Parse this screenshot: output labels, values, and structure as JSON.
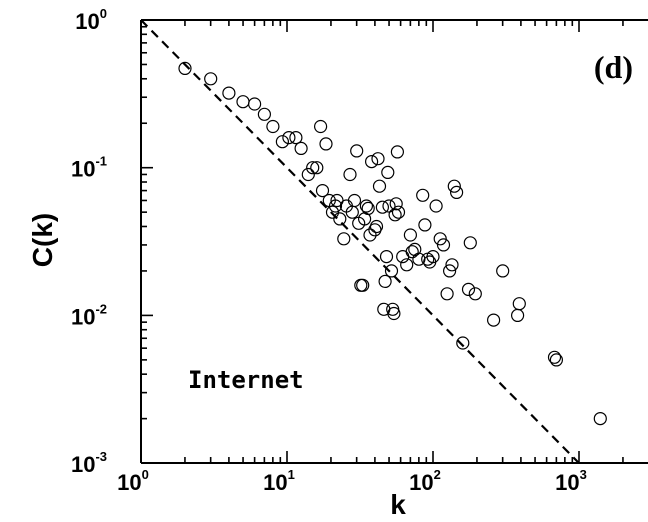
{
  "chart_data": {
    "type": "scatter",
    "xlabel": "k",
    "ylabel": "C(k)",
    "x_scale": "log",
    "y_scale": "log",
    "xlim": [
      1,
      2500
    ],
    "ylim": [
      0.001,
      1
    ],
    "x_ticks": [
      {
        "value": 1,
        "base": "10",
        "exp": "0"
      },
      {
        "value": 10,
        "base": "10",
        "exp": "1"
      },
      {
        "value": 100,
        "base": "10",
        "exp": "2"
      },
      {
        "value": 1000,
        "base": "10",
        "exp": "3"
      }
    ],
    "y_ticks": [
      {
        "value": 1,
        "base": "10",
        "exp": "0"
      },
      {
        "value": 0.1,
        "base": "10",
        "exp": "-1"
      },
      {
        "value": 0.01,
        "base": "10",
        "exp": "-2"
      },
      {
        "value": 0.001,
        "base": "10",
        "exp": "-3"
      }
    ],
    "panel_label": "(d)",
    "annotation": "Internet",
    "reference_line": {
      "style": "dashed",
      "points": [
        [
          1,
          1
        ],
        [
          1000,
          0.001
        ]
      ]
    },
    "points": [
      [
        2.0,
        0.47
      ],
      [
        3.0,
        0.4
      ],
      [
        4.0,
        0.32
      ],
      [
        5.0,
        0.28
      ],
      [
        6.0,
        0.27
      ],
      [
        7.0,
        0.23
      ],
      [
        8.0,
        0.19
      ],
      [
        9.3,
        0.15
      ],
      [
        10.3,
        0.16
      ],
      [
        11.5,
        0.16
      ],
      [
        12.5,
        0.135
      ],
      [
        14.0,
        0.09
      ],
      [
        15.0,
        0.1
      ],
      [
        16.0,
        0.1
      ],
      [
        17.0,
        0.19
      ],
      [
        17.5,
        0.07
      ],
      [
        18.5,
        0.145
      ],
      [
        19.5,
        0.06
      ],
      [
        20.5,
        0.05
      ],
      [
        21.5,
        0.055
      ],
      [
        22.0,
        0.06
      ],
      [
        23.0,
        0.045
      ],
      [
        24.5,
        0.033
      ],
      [
        25.5,
        0.055
      ],
      [
        27.0,
        0.09
      ],
      [
        28.0,
        0.05
      ],
      [
        29.0,
        0.06
      ],
      [
        30.0,
        0.13
      ],
      [
        31.0,
        0.042
      ],
      [
        32.0,
        0.016
      ],
      [
        33.0,
        0.016
      ],
      [
        34.0,
        0.045
      ],
      [
        35.0,
        0.055
      ],
      [
        36.0,
        0.053
      ],
      [
        37.0,
        0.035
      ],
      [
        38.0,
        0.11
      ],
      [
        40.0,
        0.038
      ],
      [
        41.0,
        0.04
      ],
      [
        42.0,
        0.115
      ],
      [
        43.0,
        0.075
      ],
      [
        45.0,
        0.054
      ],
      [
        46.0,
        0.011
      ],
      [
        47.0,
        0.017
      ],
      [
        48.0,
        0.025
      ],
      [
        49.0,
        0.093
      ],
      [
        50.0,
        0.055
      ],
      [
        52.0,
        0.02
      ],
      [
        53.0,
        0.011
      ],
      [
        54.0,
        0.0103
      ],
      [
        55.0,
        0.048
      ],
      [
        56.0,
        0.057
      ],
      [
        57.0,
        0.128
      ],
      [
        58.0,
        0.05
      ],
      [
        62.0,
        0.025
      ],
      [
        66.0,
        0.022
      ],
      [
        70.0,
        0.035
      ],
      [
        72.0,
        0.027
      ],
      [
        75.0,
        0.028
      ],
      [
        80.0,
        0.024
      ],
      [
        85.0,
        0.065
      ],
      [
        88.0,
        0.041
      ],
      [
        92.0,
        0.024
      ],
      [
        95.0,
        0.023
      ],
      [
        100.0,
        0.025
      ],
      [
        105.0,
        0.055
      ],
      [
        112.0,
        0.033
      ],
      [
        118.0,
        0.03
      ],
      [
        125.0,
        0.014
      ],
      [
        130.0,
        0.02
      ],
      [
        135.0,
        0.022
      ],
      [
        140.0,
        0.075
      ],
      [
        145.0,
        0.068
      ],
      [
        160.0,
        0.0065
      ],
      [
        175.0,
        0.015
      ],
      [
        180.0,
        0.031
      ],
      [
        195.0,
        0.014
      ],
      [
        260.0,
        0.0093
      ],
      [
        300.0,
        0.02
      ],
      [
        380.0,
        0.01
      ],
      [
        390.0,
        0.012
      ],
      [
        680.0,
        0.0052
      ],
      [
        700.0,
        0.005
      ],
      [
        1400.0,
        0.002
      ]
    ]
  }
}
